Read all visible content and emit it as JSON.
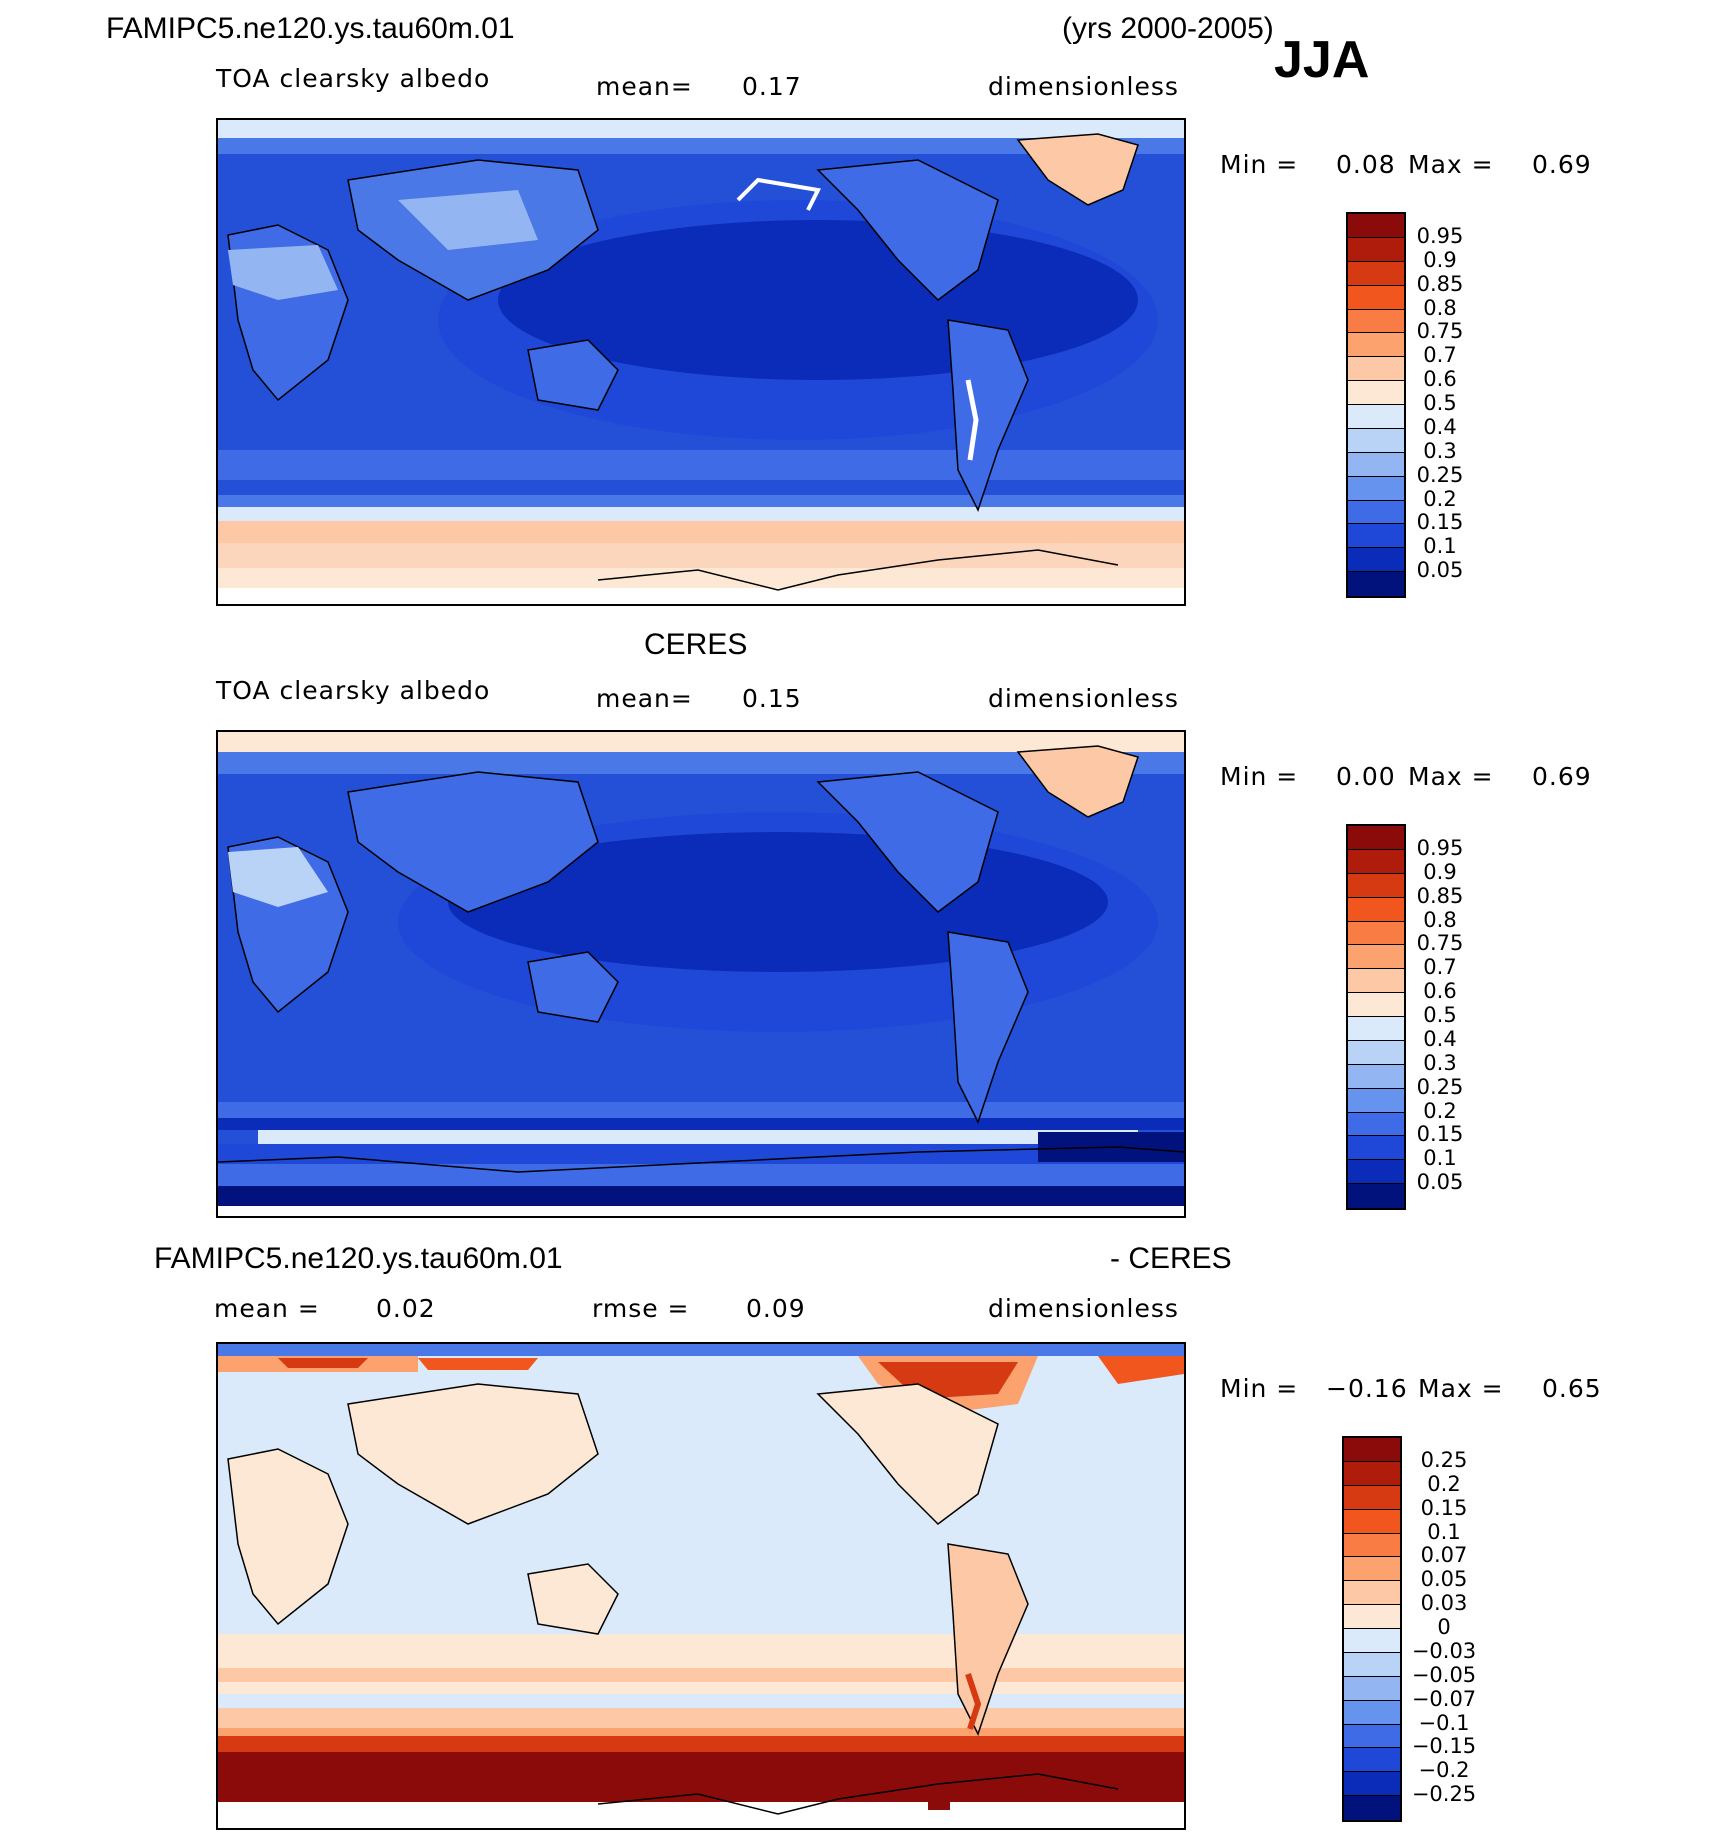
{
  "header": {
    "case_name": "FAMIPC5.ne120.ys.tau60m.01",
    "years": "(yrs 2000-2005)",
    "season": "JJA"
  },
  "panels": [
    {
      "id": "model",
      "variable": "TOA clearsky albedo",
      "stat1_label": "mean=",
      "stat1_value": "0.17",
      "units": "dimensionless",
      "min_label": "Min =",
      "min_value": "0.08",
      "max_label": "Max =",
      "max_value": "0.69",
      "colorbar_labels": [
        "0.95",
        "0.9",
        "0.85",
        "0.8",
        "0.75",
        "0.7",
        "0.6",
        "0.5",
        "0.4",
        "0.3",
        "0.25",
        "0.2",
        "0.15",
        "0.1",
        "0.05"
      ],
      "colorbar_colors": [
        "#8b0a0a",
        "#b01c0c",
        "#d63a12",
        "#f0561e",
        "#f97c45",
        "#fba26f",
        "#fcc8a6",
        "#fde8d6",
        "#dbeafb",
        "#b9d3f7",
        "#93b6f2",
        "#6693ed",
        "#3f6be6",
        "#1f48d8",
        "#0b2cb8",
        "#02127d"
      ]
    },
    {
      "id": "obs",
      "title": "CERES",
      "variable": "TOA clearsky albedo",
      "stat1_label": "mean=",
      "stat1_value": "0.15",
      "units": "dimensionless",
      "min_label": "Min =",
      "min_value": "0.00",
      "max_label": "Max =",
      "max_value": "0.69",
      "colorbar_labels": [
        "0.95",
        "0.9",
        "0.85",
        "0.8",
        "0.75",
        "0.7",
        "0.6",
        "0.5",
        "0.4",
        "0.3",
        "0.25",
        "0.2",
        "0.15",
        "0.1",
        "0.05"
      ],
      "colorbar_colors": [
        "#8b0a0a",
        "#b01c0c",
        "#d63a12",
        "#f0561e",
        "#f97c45",
        "#fba26f",
        "#fcc8a6",
        "#fde8d6",
        "#dbeafb",
        "#b9d3f7",
        "#93b6f2",
        "#6693ed",
        "#3f6be6",
        "#1f48d8",
        "#0b2cb8",
        "#02127d"
      ]
    },
    {
      "id": "diff",
      "title_left": "FAMIPC5.ne120.ys.tau60m.01",
      "title_right": "- CERES",
      "stat1_label": "mean =",
      "stat1_value": "0.02",
      "stat2_label": "rmse =",
      "stat2_value": "0.09",
      "units": "dimensionless",
      "min_label": "Min =",
      "min_value": "−0.16",
      "max_label": "Max =",
      "max_value": "0.65",
      "colorbar_labels": [
        "0.25",
        "0.2",
        "0.15",
        "0.1",
        "0.07",
        "0.05",
        "0.03",
        "0",
        "−0.03",
        "−0.05",
        "−0.07",
        "−0.1",
        "−0.15",
        "−0.2",
        "−0.25"
      ],
      "colorbar_colors": [
        "#8b0a0a",
        "#b01c0c",
        "#d63a12",
        "#f0561e",
        "#f97c45",
        "#fba26f",
        "#fcc8a6",
        "#fde8d6",
        "#dbeafb",
        "#b9d3f7",
        "#93b6f2",
        "#6693ed",
        "#3f6be6",
        "#1f48d8",
        "#0b2cb8",
        "#02127d"
      ]
    }
  ]
}
